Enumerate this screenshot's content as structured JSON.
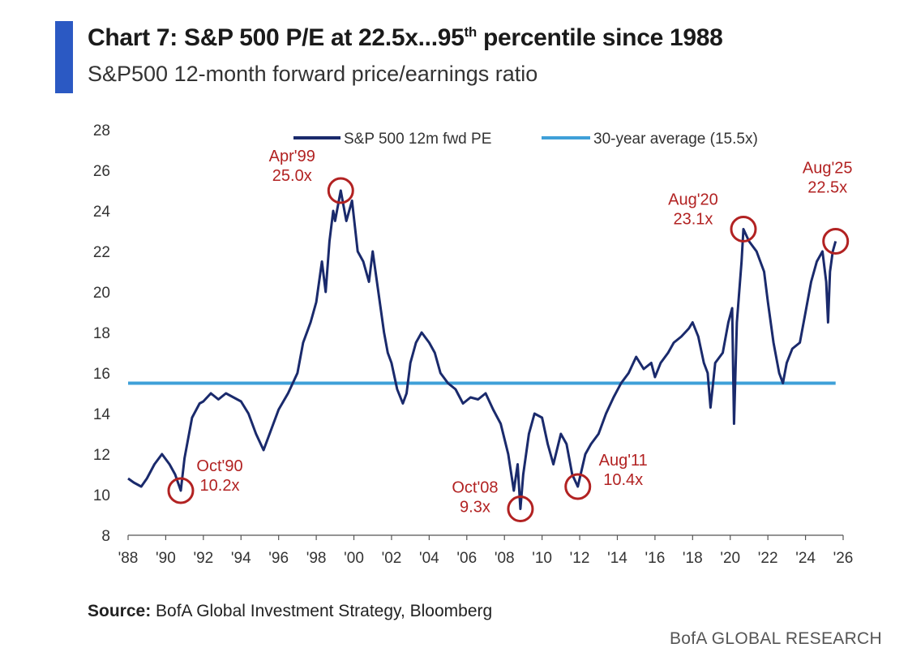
{
  "header": {
    "title_main": "Chart 7: S&P 500 P/E at 22.5x...95",
    "title_sup": "th",
    "title_tail": " percentile since 1988",
    "subtitle": "S&P500 12-month forward price/earnings ratio"
  },
  "footer": {
    "source_label": "Source:",
    "source_text": " BofA Global Investment Strategy, Bloomberg",
    "brand": "BofA GLOBAL RESEARCH"
  },
  "colors": {
    "series": "#1a2a6c",
    "average": "#3fa0d8",
    "annotation": "#b22222",
    "title_accent": "#2b59c3"
  },
  "chart_data": {
    "type": "line",
    "title": "Chart 7: S&P 500 P/E at 22.5x...95th percentile since 1988",
    "subtitle": "S&P500 12-month forward price/earnings ratio",
    "ylim": [
      8,
      28
    ],
    "yticks": [
      8,
      10,
      12,
      14,
      16,
      18,
      20,
      22,
      24,
      26,
      28
    ],
    "xlim": [
      1988,
      2026
    ],
    "xticks": [
      {
        "year": 1988,
        "label": "'88"
      },
      {
        "year": 1990,
        "label": "'90"
      },
      {
        "year": 1992,
        "label": "'92"
      },
      {
        "year": 1994,
        "label": "'94"
      },
      {
        "year": 1996,
        "label": "'96"
      },
      {
        "year": 1998,
        "label": "'98"
      },
      {
        "year": 2000,
        "label": "'00"
      },
      {
        "year": 2002,
        "label": "'02"
      },
      {
        "year": 2004,
        "label": "'04"
      },
      {
        "year": 2006,
        "label": "'06"
      },
      {
        "year": 2008,
        "label": "'08"
      },
      {
        "year": 2010,
        "label": "'10"
      },
      {
        "year": 2012,
        "label": "'12"
      },
      {
        "year": 2014,
        "label": "'14"
      },
      {
        "year": 2016,
        "label": "'16"
      },
      {
        "year": 2018,
        "label": "'18"
      },
      {
        "year": 2020,
        "label": "'20"
      },
      {
        "year": 2022,
        "label": "'22"
      },
      {
        "year": 2024,
        "label": "'24"
      },
      {
        "year": 2026,
        "label": "'26"
      }
    ],
    "legend_placement": "top",
    "grid": false,
    "series": [
      {
        "name": "S&P 500 12m fwd PE",
        "x": [
          1988.0,
          1988.3,
          1988.7,
          1989.0,
          1989.4,
          1989.8,
          1990.2,
          1990.5,
          1990.8,
          1991.0,
          1991.4,
          1991.8,
          1992.0,
          1992.4,
          1992.8,
          1993.2,
          1993.6,
          1994.0,
          1994.4,
          1994.8,
          1995.2,
          1995.6,
          1996.0,
          1996.5,
          1997.0,
          1997.3,
          1997.7,
          1998.0,
          1998.3,
          1998.5,
          1998.7,
          1998.9,
          1999.0,
          1999.3,
          1999.6,
          1999.9,
          2000.2,
          2000.5,
          2000.8,
          2001.0,
          2001.3,
          2001.6,
          2001.8,
          2002.0,
          2002.3,
          2002.6,
          2002.8,
          2003.0,
          2003.3,
          2003.6,
          2004.0,
          2004.3,
          2004.6,
          2005.0,
          2005.4,
          2005.8,
          2006.2,
          2006.6,
          2007.0,
          2007.4,
          2007.8,
          2008.2,
          2008.5,
          2008.7,
          2008.85,
          2009.0,
          2009.3,
          2009.6,
          2010.0,
          2010.3,
          2010.6,
          2011.0,
          2011.3,
          2011.6,
          2011.9,
          2012.3,
          2012.6,
          2013.0,
          2013.4,
          2013.8,
          2014.2,
          2014.6,
          2015.0,
          2015.4,
          2015.8,
          2016.0,
          2016.3,
          2016.7,
          2017.0,
          2017.4,
          2017.8,
          2018.0,
          2018.3,
          2018.6,
          2018.8,
          2018.95,
          2019.2,
          2019.6,
          2019.9,
          2020.1,
          2020.2,
          2020.35,
          2020.6,
          2020.7,
          2021.0,
          2021.4,
          2021.8,
          2022.0,
          2022.3,
          2022.6,
          2022.8,
          2023.0,
          2023.3,
          2023.7,
          2024.0,
          2024.3,
          2024.6,
          2024.9,
          2025.1,
          2025.2,
          2025.3,
          2025.45,
          2025.6
        ],
        "values": [
          10.8,
          10.6,
          10.4,
          10.8,
          11.5,
          12.0,
          11.5,
          11.0,
          10.2,
          11.8,
          13.8,
          14.5,
          14.6,
          15.0,
          14.7,
          15.0,
          14.8,
          14.6,
          14.0,
          13.0,
          12.2,
          13.2,
          14.2,
          15.0,
          16.0,
          17.5,
          18.5,
          19.5,
          21.5,
          20.0,
          22.5,
          24.0,
          23.5,
          25.0,
          23.5,
          24.5,
          22.0,
          21.5,
          20.5,
          22.0,
          20.0,
          18.0,
          17.0,
          16.5,
          15.2,
          14.5,
          15.0,
          16.5,
          17.5,
          18.0,
          17.5,
          17.0,
          16.0,
          15.5,
          15.2,
          14.5,
          14.8,
          14.7,
          15.0,
          14.2,
          13.5,
          12.0,
          10.2,
          11.5,
          9.3,
          11.0,
          13.0,
          14.0,
          13.8,
          12.5,
          11.5,
          13.0,
          12.5,
          11.0,
          10.4,
          12.0,
          12.5,
          13.0,
          14.0,
          14.8,
          15.5,
          16.0,
          16.8,
          16.2,
          16.5,
          15.8,
          16.5,
          17.0,
          17.5,
          17.8,
          18.2,
          18.5,
          17.8,
          16.5,
          16.0,
          14.3,
          16.5,
          17.0,
          18.5,
          19.2,
          13.5,
          18.5,
          21.5,
          23.1,
          22.5,
          22.0,
          21.0,
          19.5,
          17.5,
          16.0,
          15.5,
          16.5,
          17.2,
          17.5,
          19.0,
          20.5,
          21.5,
          22.0,
          20.5,
          18.5,
          21.0,
          22.0,
          22.5
        ]
      },
      {
        "name": "30-year average (15.5x)",
        "x": [
          1988.0,
          2025.6
        ],
        "values": [
          15.5,
          15.5
        ]
      }
    ],
    "annotations": [
      {
        "label": "Oct'90",
        "value_label": "10.2x",
        "x": 1990.8,
        "y": 10.2
      },
      {
        "label": "Apr'99",
        "value_label": "25.0x",
        "x": 1999.3,
        "y": 25.0
      },
      {
        "label": "Oct'08",
        "value_label": "9.3x",
        "x": 2008.85,
        "y": 9.3
      },
      {
        "label": "Aug'11",
        "value_label": "10.4x",
        "x": 2011.9,
        "y": 10.4
      },
      {
        "label": "Aug'20",
        "value_label": "23.1x",
        "x": 2020.7,
        "y": 23.1
      },
      {
        "label": "Aug'25",
        "value_label": "22.5x",
        "x": 2025.6,
        "y": 22.5
      }
    ]
  }
}
